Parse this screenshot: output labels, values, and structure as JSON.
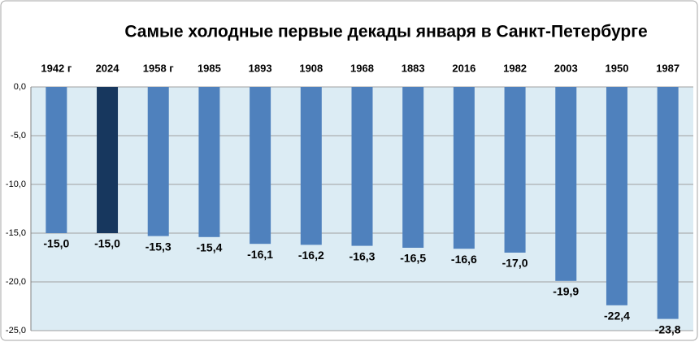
{
  "chart_data": {
    "type": "bar",
    "title": "Самые холодные первые декады  января в Санкт-Петербурге",
    "categories": [
      "1942 г",
      "2024",
      "1958 г",
      "1985",
      "1893",
      "1908",
      "1968",
      "1883",
      "2016",
      "1982",
      "2003",
      "1950",
      "1987"
    ],
    "values": [
      -15.0,
      -15.0,
      -15.3,
      -15.4,
      -16.1,
      -16.2,
      -16.3,
      -16.5,
      -16.6,
      -17.0,
      -19.9,
      -22.4,
      -23.8
    ],
    "value_labels": [
      "-15,0",
      "-15,0",
      "-15,3",
      "-15,4",
      "-16,1",
      "-16,2",
      "-16,3",
      "-16,5",
      "-16,6",
      "-17,0",
      "-19,9",
      "-22,4",
      "-23,8"
    ],
    "colors": [
      "#4f81bd",
      "#17375e",
      "#4f81bd",
      "#4f81bd",
      "#4f81bd",
      "#4f81bd",
      "#4f81bd",
      "#4f81bd",
      "#4f81bd",
      "#4f81bd",
      "#4f81bd",
      "#4f81bd",
      "#4f81bd"
    ],
    "ylim": [
      -25,
      0
    ],
    "yticks": [
      {
        "value": 0,
        "label": "0,0"
      },
      {
        "value": -5,
        "label": "-5,0"
      },
      {
        "value": -10,
        "label": "-10,0"
      },
      {
        "value": -15,
        "label": "-15,0"
      },
      {
        "value": -20,
        "label": "-20,0"
      },
      {
        "value": -25,
        "label": "-25,0"
      }
    ],
    "grid": true
  }
}
